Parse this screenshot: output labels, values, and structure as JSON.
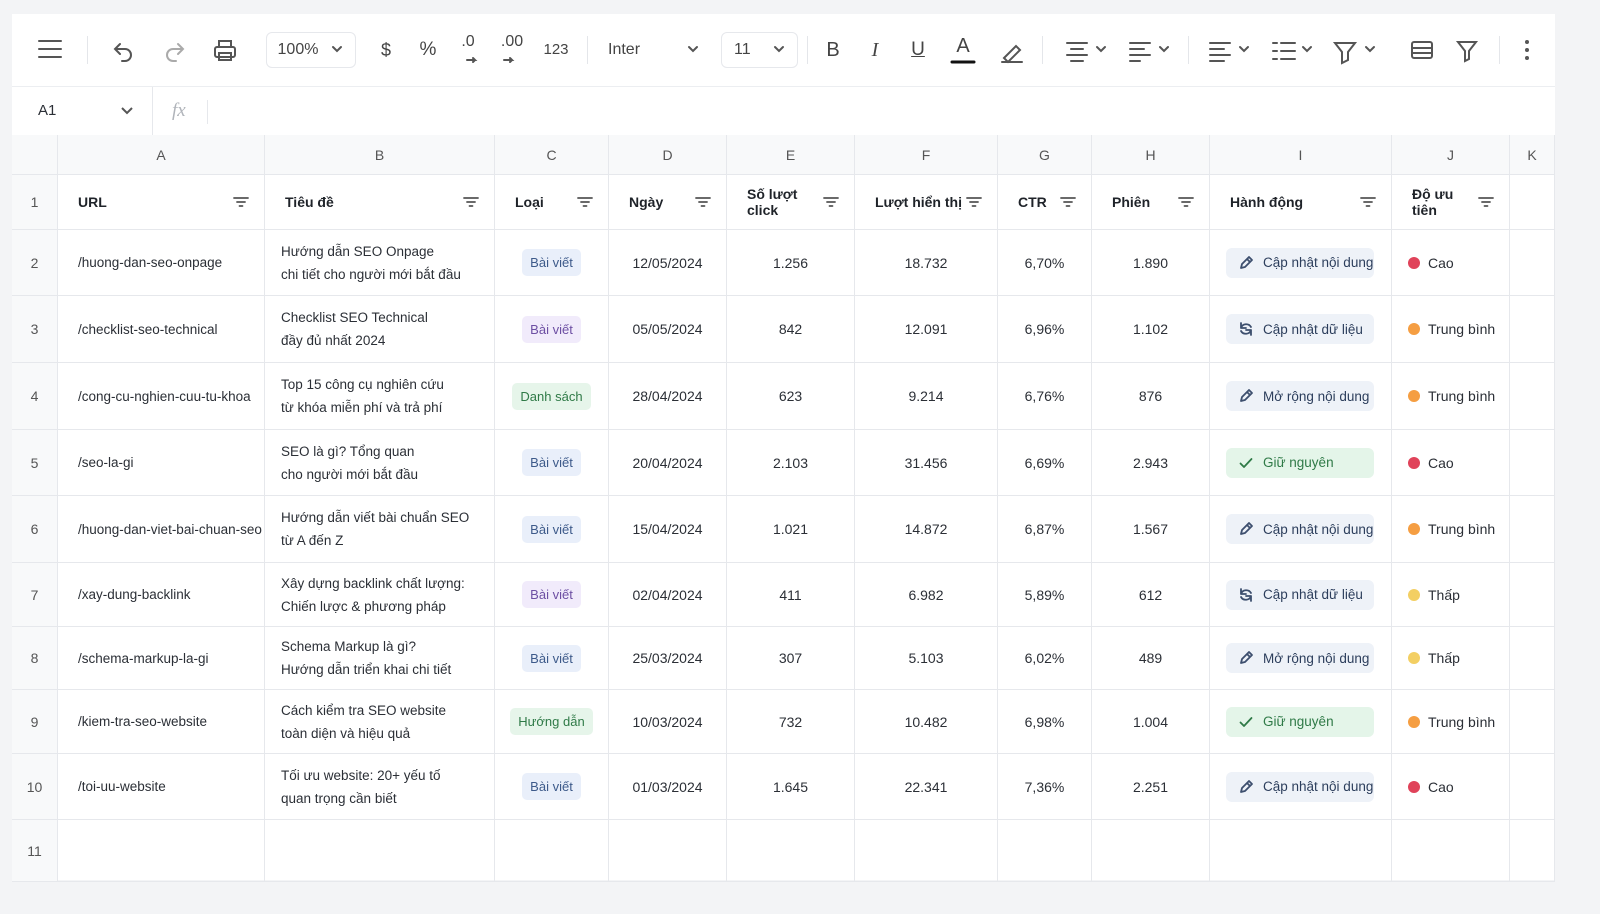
{
  "toolbar": {
    "zoom": "100%",
    "currency": "$",
    "percent": "%",
    "decrease_decimal": ".0",
    "increase_decimal": ".00",
    "number_format": "123",
    "font": "Inter",
    "font_size": "11",
    "bold": "B",
    "italic": "I",
    "underline": "U",
    "text_color": "A"
  },
  "formula_bar": {
    "cell_ref": "A1",
    "fx": "fx"
  },
  "columns": [
    "A",
    "B",
    "C",
    "D",
    "E",
    "F",
    "G",
    "H",
    "I",
    "J",
    "K"
  ],
  "row_numbers": [
    1,
    2,
    3,
    4,
    5,
    6,
    7,
    8,
    9,
    10,
    11
  ],
  "table": {
    "header": [
      "URL",
      "Tiêu đề",
      "Loại",
      "Ngày",
      "Số lượt click",
      "Lượt hiển thị",
      "CTR",
      "Phiên",
      "Hành động",
      "Độ ưu tiên"
    ],
    "rows": [
      {
        "url": "/huong-dan-seo-onpage",
        "title": [
          "Hướng dẫn SEO Onpage",
          "chi tiết cho người mới bắt đầu"
        ],
        "type": "Bài viết",
        "type_tone": "blue",
        "date": "12/05/2024",
        "clicks": "1.256",
        "impressions": "18.732",
        "ctr": "6,70%",
        "sessions": "1.890",
        "action": "Cập nhật nội dung",
        "action_icon": "edit",
        "priority": "Cao",
        "priority_color": "#e0435a"
      },
      {
        "url": "/checklist-seo-technical",
        "title": [
          "Checklist SEO Technical",
          "đầy đủ nhất 2024"
        ],
        "type": "Bài viết",
        "type_tone": "purple",
        "date": "05/05/2024",
        "clicks": "842",
        "impressions": "12.091",
        "ctr": "6,96%",
        "sessions": "1.102",
        "action": "Cập nhật dữ liệu",
        "action_icon": "refresh",
        "priority": "Trung bình",
        "priority_color": "#f59e42"
      },
      {
        "url": "/cong-cu-nghien-cuu-tu-khoa",
        "title": [
          "Top 15 công cụ nghiên cứu",
          "từ khóa miễn phí và trả phí"
        ],
        "type": "Danh sách",
        "type_tone": "green",
        "date": "28/04/2024",
        "clicks": "623",
        "impressions": "9.214",
        "ctr": "6,76%",
        "sessions": "876",
        "action": "Mở rộng nội dung",
        "action_icon": "edit",
        "priority": "Trung bình",
        "priority_color": "#f59e42"
      },
      {
        "url": "/seo-la-gi",
        "title": [
          "SEO là gì? Tổng quan",
          "cho người mới bắt đầu"
        ],
        "type": "Bài viết",
        "type_tone": "blue",
        "date": "20/04/2024",
        "clicks": "2.103",
        "impressions": "31.456",
        "ctr": "6,69%",
        "sessions": "2.943",
        "action": "Giữ nguyên",
        "action_icon": "check",
        "priority": "Cao",
        "priority_color": "#e0435a"
      },
      {
        "url": "/huong-dan-viet-bai-chuan-seo",
        "title": [
          "Hướng dẫn viết bài chuẩn SEO",
          "từ A đến Z"
        ],
        "type": "Bài viết",
        "type_tone": "blue",
        "date": "15/04/2024",
        "clicks": "1.021",
        "impressions": "14.872",
        "ctr": "6,87%",
        "sessions": "1.567",
        "action": "Cập nhật nội dung",
        "action_icon": "edit",
        "priority": "Trung bình",
        "priority_color": "#f59e42"
      },
      {
        "url": "/xay-dung-backlink",
        "title": [
          "Xây dựng backlink chất lượng:",
          "Chiến lược & phương pháp"
        ],
        "type": "Bài viết",
        "type_tone": "purple",
        "date": "02/04/2024",
        "clicks": "411",
        "impressions": "6.982",
        "ctr": "5,89%",
        "sessions": "612",
        "action": "Cập nhật dữ liệu",
        "action_icon": "refresh",
        "priority": "Thấp",
        "priority_color": "#f3cf63"
      },
      {
        "url": "/schema-markup-la-gi",
        "title": [
          "Schema Markup là gì?",
          "Hướng dẫn triển khai chi tiết"
        ],
        "type": "Bài viết",
        "type_tone": "blue",
        "date": "25/03/2024",
        "clicks": "307",
        "impressions": "5.103",
        "ctr": "6,02%",
        "sessions": "489",
        "action": "Mở rộng nội dung",
        "action_icon": "edit",
        "priority": "Thấp",
        "priority_color": "#f3cf63"
      },
      {
        "url": "/kiem-tra-seo-website",
        "title": [
          "Cách kiểm tra SEO website",
          "toàn diện và hiệu quả"
        ],
        "type": "Hướng dẫn",
        "type_tone": "green",
        "date": "10/03/2024",
        "clicks": "732",
        "impressions": "10.482",
        "ctr": "6,98%",
        "sessions": "1.004",
        "action": "Giữ nguyên",
        "action_icon": "check",
        "priority": "Trung bình",
        "priority_color": "#f59e42"
      },
      {
        "url": "/toi-uu-website",
        "title": [
          "Tối ưu website: 20+ yếu tố",
          "quan trọng cần biết"
        ],
        "type": "Bài viết",
        "type_tone": "blue",
        "date": "01/03/2024",
        "clicks": "1.645",
        "impressions": "22.341",
        "ctr": "7,36%",
        "sessions": "2.251",
        "action": "Cập nhật nội dung",
        "action_icon": "edit",
        "priority": "Cao",
        "priority_color": "#e0435a"
      }
    ]
  }
}
